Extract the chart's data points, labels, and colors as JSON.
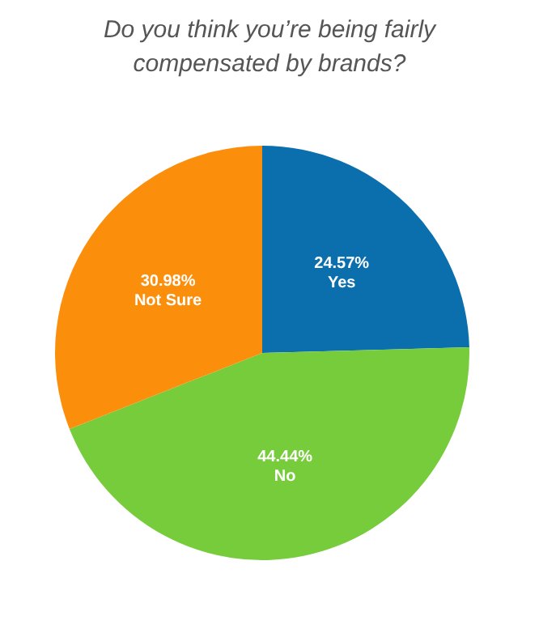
{
  "chart_data": {
    "type": "pie",
    "title": "Do you think you’re being fairly compensated by brands?",
    "categories": [
      "Yes",
      "No",
      "Not Sure"
    ],
    "values": [
      24.57,
      44.44,
      30.98
    ],
    "value_labels": [
      "24.57%",
      "44.44%",
      "30.98%"
    ],
    "colors": [
      "#0b6fae",
      "#77cc3b",
      "#fb8f0c"
    ],
    "legend": false
  }
}
